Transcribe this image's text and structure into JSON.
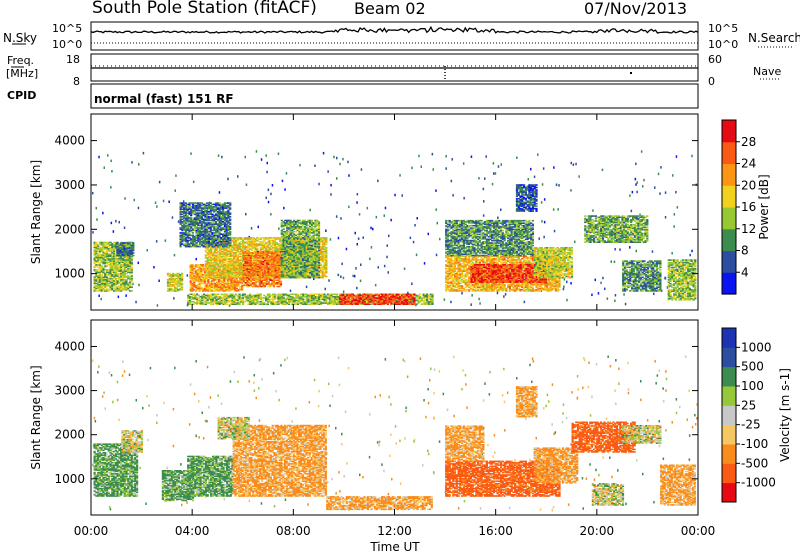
{
  "header": {
    "station": "South Pole Station (fitACF)",
    "beam": "Beam 02",
    "date": "07/Nov/2013"
  },
  "noise_panel": {
    "left_label": "N.Sky",
    "right_label": "N.Search",
    "left_ticks": [
      "10^5",
      "10^0"
    ],
    "right_ticks": [
      "10^5",
      "10^0"
    ]
  },
  "freq_panel": {
    "left_label_1": "Freq.",
    "left_label_2": "[MHz]",
    "right_label": "Nave",
    "left_ticks": [
      "18",
      "8"
    ],
    "right_ticks": [
      "60",
      "0"
    ]
  },
  "cpid_panel": {
    "label": "CPID",
    "text": "normal (fast) 151 RF"
  },
  "colors": {
    "power_scale": [
      "#0a14f0",
      "#2d4ea0",
      "#3c8c50",
      "#96c832",
      "#f0d21e",
      "#fa9614",
      "#fa5a14",
      "#e60a14"
    ],
    "velocity_scale": [
      "#e60a14",
      "#fa5a14",
      "#fa8c1e",
      "#f5c864",
      "#c8c8c8",
      "#96c83c",
      "#3c8c50",
      "#2d4ea0",
      "#1e32b4"
    ]
  },
  "chart_data": [
    {
      "type": "heatmap",
      "title": "Power",
      "ylabel": "Slant Range [km]",
      "xlabel": "Time UT",
      "ylim": [
        180,
        4600
      ],
      "y_ticks": [
        "1000",
        "2000",
        "3000",
        "4000"
      ],
      "x_ticks": [
        "00:00",
        "04:00",
        "08:00",
        "12:00",
        "16:00",
        "20:00",
        "00:00"
      ],
      "colorbar_label": "Power [dB]",
      "colorbar_ticks": [
        "4",
        "8",
        "12",
        "16",
        "20",
        "24",
        "28"
      ],
      "colorbar_range": [
        0,
        32
      ],
      "regions": [
        {
          "t0": 0.1,
          "t1": 1.6,
          "r0": 600,
          "r1": 1700,
          "v": 14
        },
        {
          "t0": 1.0,
          "t1": 1.7,
          "r0": 1400,
          "r1": 1700,
          "v": 8
        },
        {
          "t0": 3.0,
          "t1": 3.6,
          "r0": 600,
          "r1": 1000,
          "v": 16
        },
        {
          "t0": 3.9,
          "t1": 6.0,
          "r0": 600,
          "r1": 1200,
          "v": 22
        },
        {
          "t0": 4.5,
          "t1": 9.3,
          "r0": 900,
          "r1": 1800,
          "v": 18
        },
        {
          "t0": 6.0,
          "t1": 7.5,
          "r0": 700,
          "r1": 1500,
          "v": 24
        },
        {
          "t0": 7.5,
          "t1": 9.0,
          "r0": 900,
          "r1": 2200,
          "v": 12
        },
        {
          "t0": 3.5,
          "t1": 5.5,
          "r0": 1600,
          "r1": 2600,
          "v": 8
        },
        {
          "t0": 3.8,
          "t1": 13.5,
          "r0": 300,
          "r1": 550,
          "v": 14
        },
        {
          "t0": 9.8,
          "t1": 12.8,
          "r0": 300,
          "r1": 550,
          "v": 28
        },
        {
          "t0": 14.0,
          "t1": 18.5,
          "r0": 600,
          "r1": 1400,
          "v": 20
        },
        {
          "t0": 15.0,
          "t1": 18.0,
          "r0": 800,
          "r1": 1200,
          "v": 28
        },
        {
          "t0": 14.0,
          "t1": 17.5,
          "r0": 1400,
          "r1": 2200,
          "v": 10
        },
        {
          "t0": 17.5,
          "t1": 19.0,
          "r0": 900,
          "r1": 1600,
          "v": 16
        },
        {
          "t0": 19.5,
          "t1": 22.0,
          "r0": 1700,
          "r1": 2300,
          "v": 12
        },
        {
          "t0": 16.8,
          "t1": 17.6,
          "r0": 2400,
          "r1": 3000,
          "v": 6
        },
        {
          "t0": 21.0,
          "t1": 22.5,
          "r0": 600,
          "r1": 1300,
          "v": 10
        },
        {
          "t0": 22.8,
          "t1": 23.9,
          "r0": 400,
          "r1": 1300,
          "v": 14
        }
      ]
    },
    {
      "type": "heatmap",
      "title": "Velocity",
      "ylabel": "Slant Range [km]",
      "xlabel": "Time UT",
      "ylim": [
        180,
        4600
      ],
      "y_ticks": [
        "1000",
        "2000",
        "3000",
        "4000"
      ],
      "x_ticks": [
        "00:00",
        "04:00",
        "08:00",
        "12:00",
        "16:00",
        "20:00",
        "00:00"
      ],
      "colorbar_label": "Velocity [m s-1]",
      "colorbar_ticks": [
        "1000",
        "500",
        "100",
        "25",
        "-25",
        "-100",
        "-500",
        "-1000"
      ],
      "colorbar_range": [
        -2000,
        2000
      ],
      "regions": [
        {
          "t0": 0.1,
          "t1": 1.8,
          "r0": 600,
          "r1": 1800,
          "v": 150
        },
        {
          "t0": 1.2,
          "t1": 2.0,
          "r0": 1600,
          "r1": 2100,
          "v": 0
        },
        {
          "t0": 2.8,
          "t1": 4.0,
          "r0": 500,
          "r1": 1200,
          "v": 150
        },
        {
          "t0": 3.8,
          "t1": 5.6,
          "r0": 600,
          "r1": 1500,
          "v": 150
        },
        {
          "t0": 5.6,
          "t1": 9.3,
          "r0": 600,
          "r1": 2200,
          "v": -150
        },
        {
          "t0": 9.3,
          "t1": 13.5,
          "r0": 300,
          "r1": 600,
          "v": -150
        },
        {
          "t0": 5.0,
          "t1": 6.2,
          "r0": 1900,
          "r1": 2400,
          "v": 0
        },
        {
          "t0": 14.0,
          "t1": 18.5,
          "r0": 600,
          "r1": 1400,
          "v": -600
        },
        {
          "t0": 14.0,
          "t1": 15.5,
          "r0": 1400,
          "r1": 2200,
          "v": -150
        },
        {
          "t0": 17.5,
          "t1": 19.2,
          "r0": 900,
          "r1": 1700,
          "v": -150
        },
        {
          "t0": 19.0,
          "t1": 21.5,
          "r0": 1600,
          "r1": 2300,
          "v": -600
        },
        {
          "t0": 21.0,
          "t1": 22.5,
          "r0": 1800,
          "r1": 2200,
          "v": 0
        },
        {
          "t0": 16.8,
          "t1": 17.6,
          "r0": 2400,
          "r1": 3100,
          "v": -150
        },
        {
          "t0": 19.8,
          "t1": 21.0,
          "r0": 400,
          "r1": 900,
          "v": 0
        },
        {
          "t0": 22.5,
          "t1": 23.9,
          "r0": 400,
          "r1": 1300,
          "v": -150
        }
      ]
    }
  ]
}
